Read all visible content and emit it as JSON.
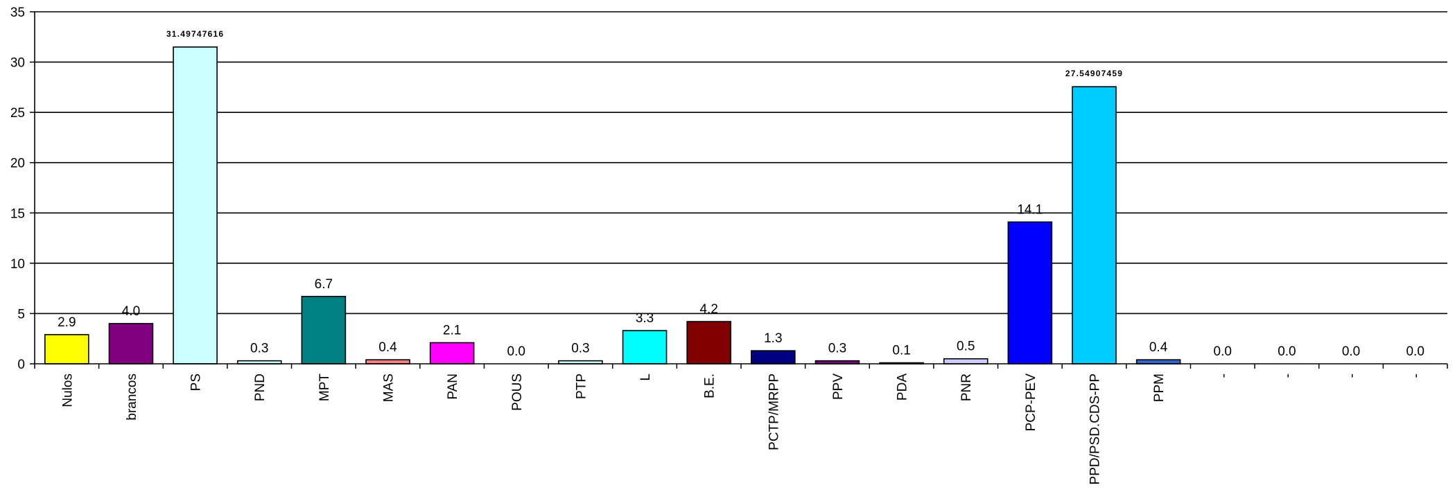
{
  "chart_data": {
    "type": "bar",
    "title": "",
    "xlabel": "",
    "ylabel": "",
    "ylim": [
      0,
      35
    ],
    "yticks": [
      0,
      5,
      10,
      15,
      20,
      25,
      30,
      35
    ],
    "grid": "horizontal",
    "legend": "none",
    "categories": [
      "Nulos",
      "brancos",
      "PS",
      "PND",
      "MPT",
      "MAS",
      "PAN",
      "POUS",
      "PTP",
      "L",
      "B.E.",
      "PCTP/MRPP",
      "PPV",
      "PDA",
      "PNR",
      "PCP-PEV",
      "PPD/PSD.CDS-PP",
      "PPM",
      "-",
      "-",
      "-",
      "-"
    ],
    "values": [
      2.9,
      4.0,
      31.49747616,
      0.3,
      6.7,
      0.4,
      2.1,
      0.0,
      0.3,
      3.3,
      4.2,
      1.3,
      0.3,
      0.1,
      0.5,
      14.1,
      27.54907459,
      0.4,
      0.0,
      0.0,
      0.0,
      0.0
    ],
    "data_labels": [
      "2.9",
      "4.0",
      "31.49747616",
      "0.3",
      "6.7",
      "0.4",
      "2.1",
      "0.0",
      "0.3",
      "3.3",
      "4.2",
      "1.3",
      "0.3",
      "0.1",
      "0.5",
      "14.1",
      "27.54907459",
      "0.4",
      "0.0",
      "0.0",
      "0.0",
      "0.0"
    ],
    "colors": [
      "#FFFF00",
      "#800080",
      "#CCFFFF",
      "#CCFFFF",
      "#008080",
      "#FF8080",
      "#FF00FF",
      "#FFFFFF",
      "#CCFFFF",
      "#00FFFF",
      "#800000",
      "#000080",
      "#800080",
      "#003366",
      "#CCCCFF",
      "#0000FF",
      "#00CCFF",
      "#3366CC",
      "#FFFFFF",
      "#FFFFFF",
      "#FFFFFF",
      "#FFFFFF"
    ]
  }
}
